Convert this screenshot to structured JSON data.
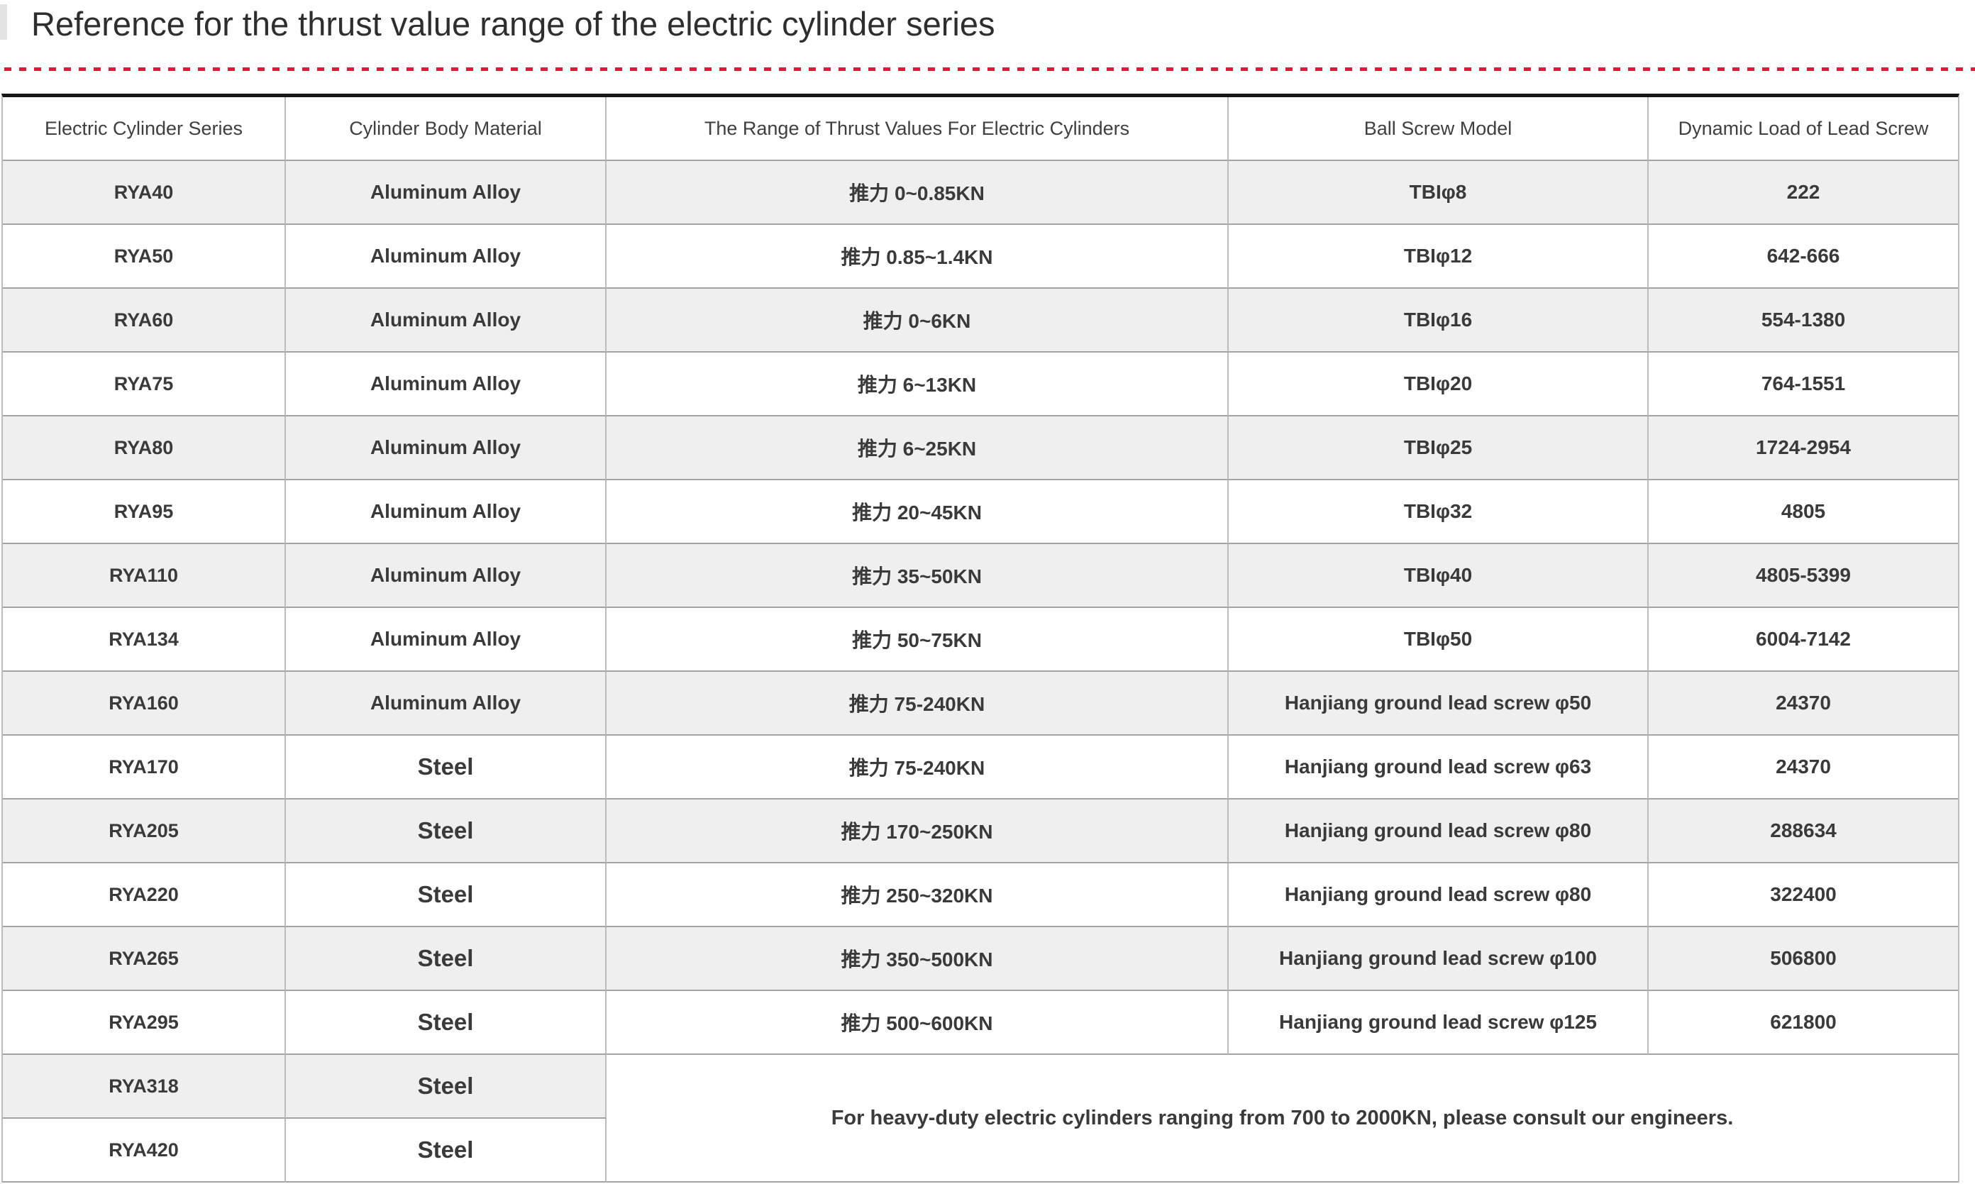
{
  "title": "Reference for the thrust value range of the electric cylinder series",
  "accent_color": "#e2173a",
  "table": {
    "columns": [
      "Electric Cylinder Series",
      "Cylinder Body Material",
      "The Range of Thrust Values For Electric Cylinders",
      "Ball Screw Model",
      "Dynamic Load of Lead Screw"
    ],
    "rows": [
      {
        "series": "RYA40",
        "material": "Aluminum Alloy",
        "thrust": "推力 0~0.85KN",
        "ball_screw": "TBIφ8",
        "dynamic_load": "222"
      },
      {
        "series": "RYA50",
        "material": "Aluminum Alloy",
        "thrust": "推力 0.85~1.4KN",
        "ball_screw": "TBIφ12",
        "dynamic_load": "642-666"
      },
      {
        "series": "RYA60",
        "material": "Aluminum Alloy",
        "thrust": "推力 0~6KN",
        "ball_screw": "TBIφ16",
        "dynamic_load": "554-1380"
      },
      {
        "series": "RYA75",
        "material": "Aluminum Alloy",
        "thrust": "推力 6~13KN",
        "ball_screw": "TBIφ20",
        "dynamic_load": "764-1551"
      },
      {
        "series": "RYA80",
        "material": "Aluminum Alloy",
        "thrust": "推力 6~25KN",
        "ball_screw": "TBIφ25",
        "dynamic_load": "1724-2954"
      },
      {
        "series": "RYA95",
        "material": "Aluminum Alloy",
        "thrust": "推力 20~45KN",
        "ball_screw": "TBIφ32",
        "dynamic_load": "4805"
      },
      {
        "series": "RYA110",
        "material": "Aluminum Alloy",
        "thrust": "推力 35~50KN",
        "ball_screw": "TBIφ40",
        "dynamic_load": "4805-5399"
      },
      {
        "series": "RYA134",
        "material": "Aluminum Alloy",
        "thrust": "推力 50~75KN",
        "ball_screw": "TBIφ50",
        "dynamic_load": "6004-7142"
      },
      {
        "series": "RYA160",
        "material": "Aluminum Alloy",
        "thrust": "推力 75-240KN",
        "ball_screw": "Hanjiang ground lead screw φ50",
        "dynamic_load": "24370"
      },
      {
        "series": "RYA170",
        "material": "Steel",
        "thrust": "推力 75-240KN",
        "ball_screw": "Hanjiang ground lead screw φ63",
        "dynamic_load": "24370"
      },
      {
        "series": "RYA205",
        "material": "Steel",
        "thrust": "推力 170~250KN",
        "ball_screw": "Hanjiang ground lead screw φ80",
        "dynamic_load": "288634"
      },
      {
        "series": "RYA220",
        "material": "Steel",
        "thrust": "推力 250~320KN",
        "ball_screw": "Hanjiang ground lead screw φ80",
        "dynamic_load": "322400"
      },
      {
        "series": "RYA265",
        "material": "Steel",
        "thrust": "推力 350~500KN",
        "ball_screw": "Hanjiang ground lead screw φ100",
        "dynamic_load": "506800"
      },
      {
        "series": "RYA295",
        "material": "Steel",
        "thrust": "推力 500~600KN",
        "ball_screw": "Hanjiang ground lead screw φ125",
        "dynamic_load": "621800"
      },
      {
        "series": "RYA318",
        "material": "Steel"
      },
      {
        "series": "RYA420",
        "material": "Steel"
      }
    ],
    "merged_note": "For heavy-duty electric cylinders ranging from 700 to 2000KN, please consult our engineers."
  }
}
